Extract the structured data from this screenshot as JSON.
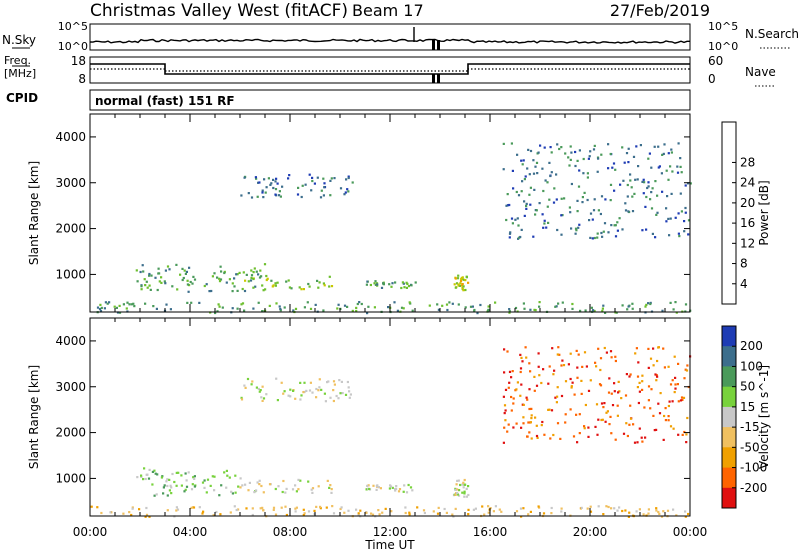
{
  "header": {
    "station": "Christmas Valley West (fitACF)",
    "beam": "Beam 17",
    "date": "27/Feb/2019"
  },
  "noise_panel": {
    "left_label": "N.Sky",
    "left_ticks": [
      "10^5",
      "10^0"
    ],
    "right_ticks": [
      "10^5",
      "10^0"
    ],
    "right_label": "N.Search"
  },
  "freq_panel": {
    "left_label_1": "Freq.",
    "left_label_2": "[MHz]",
    "left_ticks": [
      "18",
      "8"
    ],
    "right_ticks": [
      "60",
      "0"
    ],
    "right_label": "Nave",
    "cpid_label": "CPID",
    "cpid_text": "normal (fast) 151 RF"
  },
  "time_axis": {
    "label": "Time UT",
    "ticks": [
      "00:00",
      "04:00",
      "08:00",
      "12:00",
      "16:00",
      "20:00",
      "00:00"
    ]
  },
  "chart_data": [
    {
      "type": "heatmap",
      "title": "Power",
      "xlabel": "Time UT",
      "ylabel": "Slant Range [km]",
      "xlim": [
        0,
        24
      ],
      "ylim": [
        180,
        4500
      ],
      "y_ticks": [
        "1000",
        "2000",
        "3000",
        "4000"
      ],
      "colorbar": {
        "label": "Power [dB]",
        "ticks": [
          "4",
          "8",
          "12",
          "16",
          "20",
          "24",
          "28"
        ],
        "colors": [
          "#0000ff",
          "#1e3cb4",
          "#3c6e8c",
          "#4a9a5a",
          "#6dbf2e",
          "#c8c800",
          "#f0a000",
          "#ff6400",
          "#e01010"
        ]
      },
      "regions": [
        {
          "t0": 1.8,
          "t1": 7.0,
          "r0": 640,
          "r1": 1250,
          "level": 3
        },
        {
          "t0": 6.0,
          "t1": 9.8,
          "r0": 700,
          "r1": 1000,
          "level": 4
        },
        {
          "t0": 11.0,
          "t1": 13.0,
          "r0": 720,
          "r1": 880,
          "level": 3
        },
        {
          "t0": 14.5,
          "t1": 15.1,
          "r0": 620,
          "r1": 1000,
          "level": 5
        },
        {
          "t0": 6.0,
          "t1": 10.5,
          "r0": 2700,
          "r1": 3200,
          "level": 2
        },
        {
          "t0": 16.5,
          "t1": 24.0,
          "r0": 1800,
          "r1": 3900,
          "level": 2
        },
        {
          "t0": 0.0,
          "t1": 24.0,
          "r0": 180,
          "r1": 420,
          "level": 3
        }
      ]
    },
    {
      "type": "heatmap",
      "title": "Velocity",
      "xlabel": "Time UT",
      "ylabel": "Slant Range [km]",
      "xlim": [
        0,
        24
      ],
      "ylim": [
        180,
        4500
      ],
      "y_ticks": [
        "1000",
        "2000",
        "3000",
        "4000"
      ],
      "colorbar": {
        "label": "Velocity [m s^-1]",
        "ticks": [
          "200",
          "100",
          "50",
          "15",
          "-15",
          "-50",
          "-100",
          "-200"
        ],
        "colors": [
          "#1e3cb4",
          "#3c6e8c",
          "#4a9a5a",
          "#78d23c",
          "#c8c8c8",
          "#f0c060",
          "#f0a000",
          "#ff6400",
          "#e01010"
        ]
      },
      "regions": [
        {
          "t0": 1.8,
          "t1": 6.0,
          "r0": 640,
          "r1": 1250,
          "level": 3
        },
        {
          "t0": 5.5,
          "t1": 9.8,
          "r0": 700,
          "r1": 1000,
          "level": 4
        },
        {
          "t0": 11.0,
          "t1": 13.0,
          "r0": 720,
          "r1": 880,
          "level": 4
        },
        {
          "t0": 14.5,
          "t1": 15.1,
          "r0": 620,
          "r1": 1000,
          "level": 4
        },
        {
          "t0": 6.0,
          "t1": 10.5,
          "r0": 2700,
          "r1": 3200,
          "level": 4
        },
        {
          "t0": 16.5,
          "t1": 24.0,
          "r0": 1800,
          "r1": 3900,
          "level": 7
        },
        {
          "t0": 0.0,
          "t1": 24.0,
          "r0": 180,
          "r1": 420,
          "level": 5
        }
      ]
    }
  ]
}
